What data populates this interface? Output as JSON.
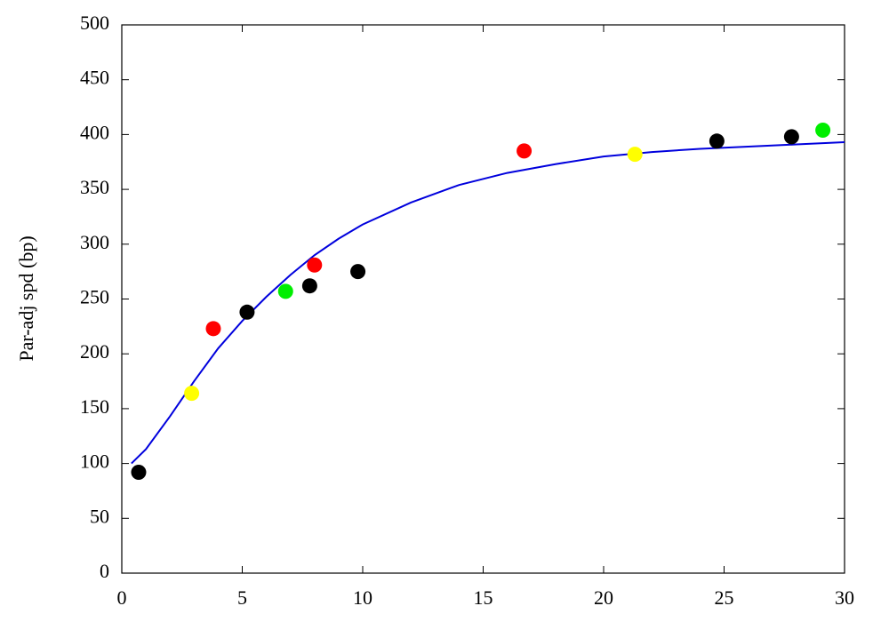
{
  "chart_data": {
    "type": "scatter",
    "ylabel": "Par-adj spd (bp)",
    "xlim": [
      0,
      30
    ],
    "ylim": [
      0,
      500
    ],
    "xticks": [
      0,
      5,
      10,
      15,
      20,
      25,
      30
    ],
    "yticks": [
      0,
      50,
      100,
      150,
      200,
      250,
      300,
      350,
      400,
      450,
      500
    ],
    "series": [
      {
        "color": "#000000",
        "x": [
          0.7,
          5.2,
          7.8,
          9.8,
          24.7,
          27.8
        ],
        "values": [
          92,
          238,
          262,
          275,
          394,
          398
        ]
      },
      {
        "color": "#ff0000",
        "x": [
          3.8,
          8.0,
          16.7
        ],
        "values": [
          223,
          281,
          385
        ]
      },
      {
        "color": "#00ee00",
        "x": [
          6.8,
          29.1
        ],
        "values": [
          257,
          404
        ]
      },
      {
        "color": "#ffff00",
        "x": [
          2.9,
          21.3
        ],
        "values": [
          164,
          382
        ]
      }
    ],
    "fit": {
      "color": "#0000dd",
      "x": [
        0.4,
        1,
        2,
        3,
        4,
        5,
        6,
        7,
        8,
        9,
        10,
        12,
        14,
        16,
        18,
        20,
        22,
        24,
        26,
        28,
        30
      ],
      "values": [
        100,
        113,
        143,
        175,
        205,
        230,
        252,
        272,
        290,
        305,
        318,
        338,
        354,
        365,
        373,
        380,
        384,
        387,
        389,
        391,
        393
      ]
    }
  }
}
